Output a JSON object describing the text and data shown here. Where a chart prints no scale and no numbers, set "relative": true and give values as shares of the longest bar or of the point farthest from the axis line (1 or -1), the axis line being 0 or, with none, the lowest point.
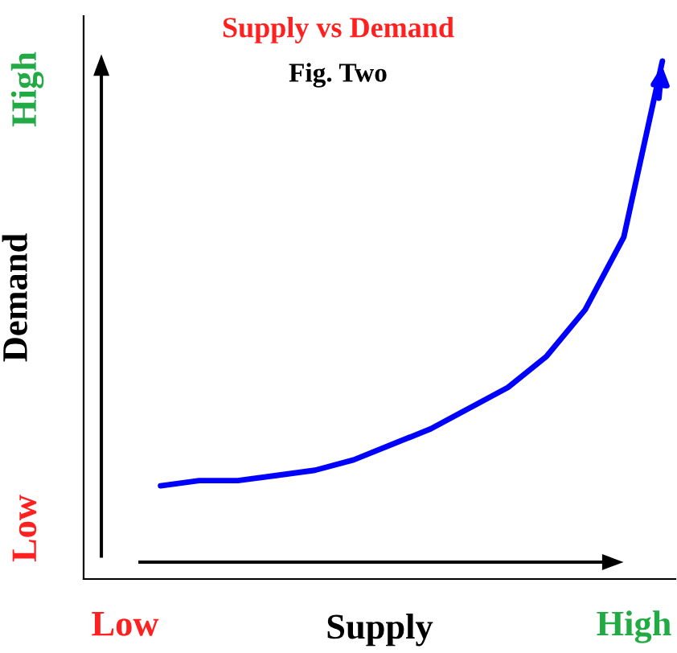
{
  "chart_data": {
    "type": "line",
    "title": "Supply vs Demand",
    "subtitle": "Fig. Two",
    "xlabel": "Supply",
    "ylabel": "Demand",
    "relative": true,
    "categories": [
      null,
      null,
      null,
      null,
      null,
      null,
      null,
      null,
      null,
      null,
      null,
      null,
      null,
      null
    ],
    "annotations": [
      "Low",
      "High",
      "Low",
      "High"
    ],
    "series": [
      {
        "color": "#0000ff",
        "values": [
          0.18,
          0.19,
          0.19,
          0.2,
          0.21,
          0.23,
          0.26,
          0.29,
          0.33,
          0.37,
          0.43,
          0.52,
          0.66,
          1
        ]
      }
    ]
  }
}
